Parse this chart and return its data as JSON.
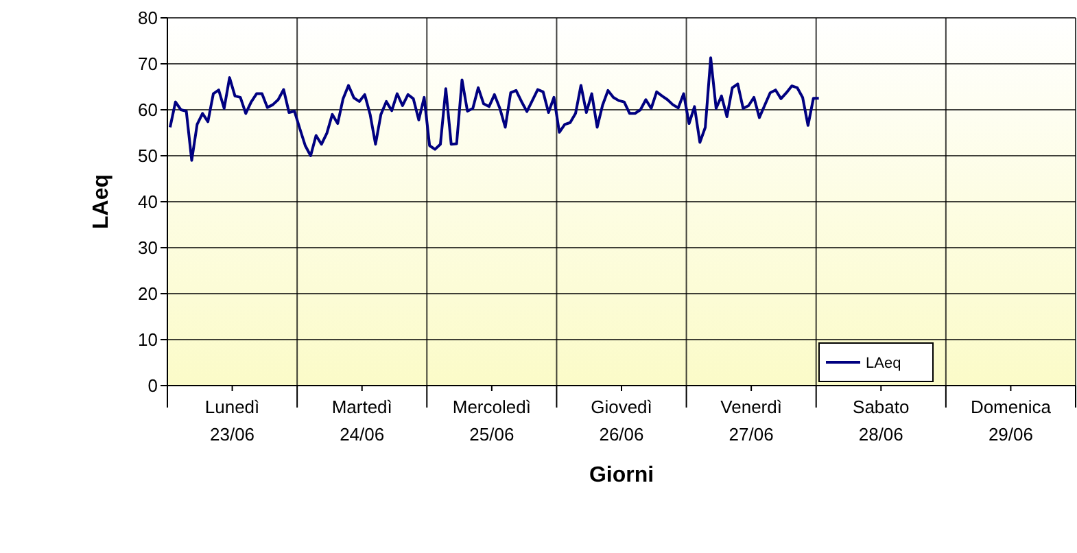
{
  "chart_data": {
    "type": "line",
    "xlabel": "Giorni",
    "ylabel": "LAeq",
    "categories": [
      null,
      null,
      null,
      null,
      null,
      null,
      null,
      null,
      null,
      null,
      null,
      null,
      "Lunedì 23/06",
      null,
      null,
      null,
      null,
      null,
      null,
      null,
      null,
      null,
      null,
      null,
      null,
      null,
      null,
      null,
      null,
      null,
      null,
      null,
      null,
      null,
      null,
      null,
      "Martedì 24/06",
      null,
      null,
      null,
      null,
      null,
      null,
      null,
      null,
      null,
      null,
      null,
      null,
      null,
      null,
      null,
      null,
      null,
      null,
      null,
      null,
      null,
      null,
      null,
      "Mercoledì 25/06",
      null,
      null,
      null,
      null,
      null,
      null,
      null,
      null,
      null,
      null,
      null,
      null,
      null,
      null,
      null,
      null,
      null,
      null,
      null,
      null,
      null,
      null,
      null,
      "Giovedì 26/06",
      null,
      null,
      null,
      null,
      null,
      null,
      null,
      null,
      null,
      null,
      null,
      null,
      null,
      null,
      null,
      null,
      null,
      null,
      null,
      null,
      null,
      null,
      null,
      "Venerdì 27/06",
      null,
      null,
      null,
      null,
      null,
      null,
      null,
      null,
      null,
      null,
      null,
      null,
      null,
      null,
      null,
      null,
      null,
      null,
      null,
      null,
      null,
      null,
      null,
      "Sabato 28/06",
      null,
      null,
      null,
      null,
      null,
      null,
      null,
      null,
      null,
      null,
      null,
      null,
      null,
      null,
      null,
      null,
      null,
      null,
      null,
      null,
      null,
      null,
      null,
      "Domenica 29/06",
      null,
      null,
      null,
      null,
      null,
      null,
      null,
      null,
      null,
      null,
      null
    ],
    "series": [
      {
        "name": "LAeq",
        "color": "#000080",
        "values": [
          56.2,
          61.7,
          60,
          59.7,
          49,
          56.8,
          59.2,
          57.4,
          63.5,
          64.3,
          60.3,
          67,
          63,
          62.7,
          59.2,
          61.7,
          63.5,
          63.5,
          60.5,
          61.1,
          62.2,
          64.4,
          59.4,
          59.7,
          55.9,
          52.2,
          50,
          54.4,
          52.5,
          54.9,
          59,
          57,
          62.4,
          65.3,
          62.6,
          61.8,
          63.3,
          59,
          52.5,
          59,
          61.8,
          59.8,
          63.5,
          60.9,
          63.3,
          62.4,
          57.8,
          62.7,
          52.2,
          51.4,
          52.5,
          64.6,
          52.5,
          52.6,
          66.5,
          59.7,
          60.3,
          64.8,
          61.3,
          60.7,
          63.3,
          60.3,
          56.2,
          63.7,
          64.2,
          61.8,
          59.6,
          62,
          64.4,
          63.9,
          59.4,
          62.7,
          55.1,
          56.8,
          57.2,
          59.2,
          65.3,
          59.4,
          63.5,
          56.2,
          61,
          64.2,
          62.7,
          62,
          61.7,
          59.2,
          59.2,
          60,
          62.2,
          60.3,
          63.9,
          63,
          62.2,
          61.1,
          60.4,
          63.5,
          57,
          60.7,
          52.9,
          56.2,
          71.3,
          60.3,
          63,
          58.5,
          64.8,
          65.6,
          60.3,
          60.9,
          62.7,
          58.3,
          61,
          63.7,
          64.3,
          62.4,
          63.7,
          65.2,
          64.8,
          62.7,
          56.6,
          62.5,
          62.5,
          null,
          null,
          null,
          null,
          null,
          null,
          null,
          null,
          null,
          null,
          null,
          null,
          null,
          null,
          null,
          null,
          null,
          null,
          null,
          null,
          null,
          null,
          null,
          null,
          null,
          null,
          null,
          null,
          null,
          null,
          null,
          null,
          null,
          null,
          null,
          null,
          null,
          null,
          null,
          null,
          null,
          null,
          null,
          null,
          null,
          null,
          null
        ]
      }
    ],
    "ylim": [
      0,
      80
    ],
    "yticks": [
      0,
      10,
      20,
      30,
      40,
      50,
      60,
      70,
      80
    ],
    "grid": true,
    "legend": "right",
    "marker": "none",
    "line_style": "solid"
  }
}
